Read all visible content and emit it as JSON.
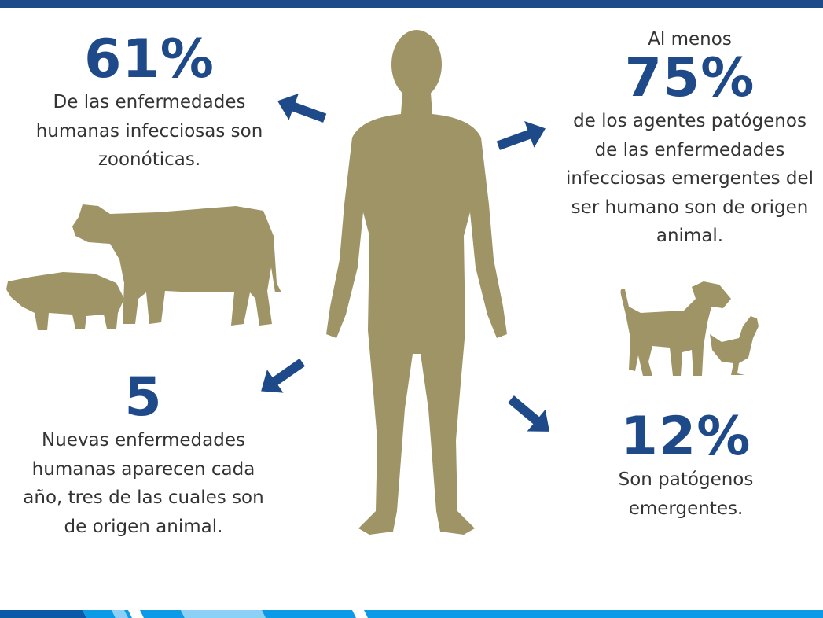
{
  "colors": {
    "accent": "#1f4a8a",
    "silhouette": "#9e9466",
    "bottom_stripes": [
      "#0a5aa8",
      "#0b9be6",
      "#8dd0f5"
    ]
  },
  "stats": [
    {
      "value": "61%",
      "lines": [
        "De las enfermedades",
        "humanas infecciosas son",
        "zoonóticas."
      ]
    },
    {
      "prefix": "Al menos",
      "value": "75%",
      "lines": [
        "de los agentes patógenos",
        "de las enfermedades",
        "infecciosas emergentes del",
        "ser humano son de origen",
        "animal."
      ]
    },
    {
      "value": "5",
      "lines": [
        "Nuevas enfermedades",
        "humanas aparecen cada",
        "año, tres de las cuales son",
        "de origen animal."
      ]
    },
    {
      "value": "12%",
      "lines": [
        "Son patógenos",
        "emergentes."
      ]
    }
  ],
  "icons": [
    "human-silhouette",
    "cow-icon",
    "pig-icon",
    "goat-icon",
    "chicken-icon",
    "arrow-icon"
  ]
}
